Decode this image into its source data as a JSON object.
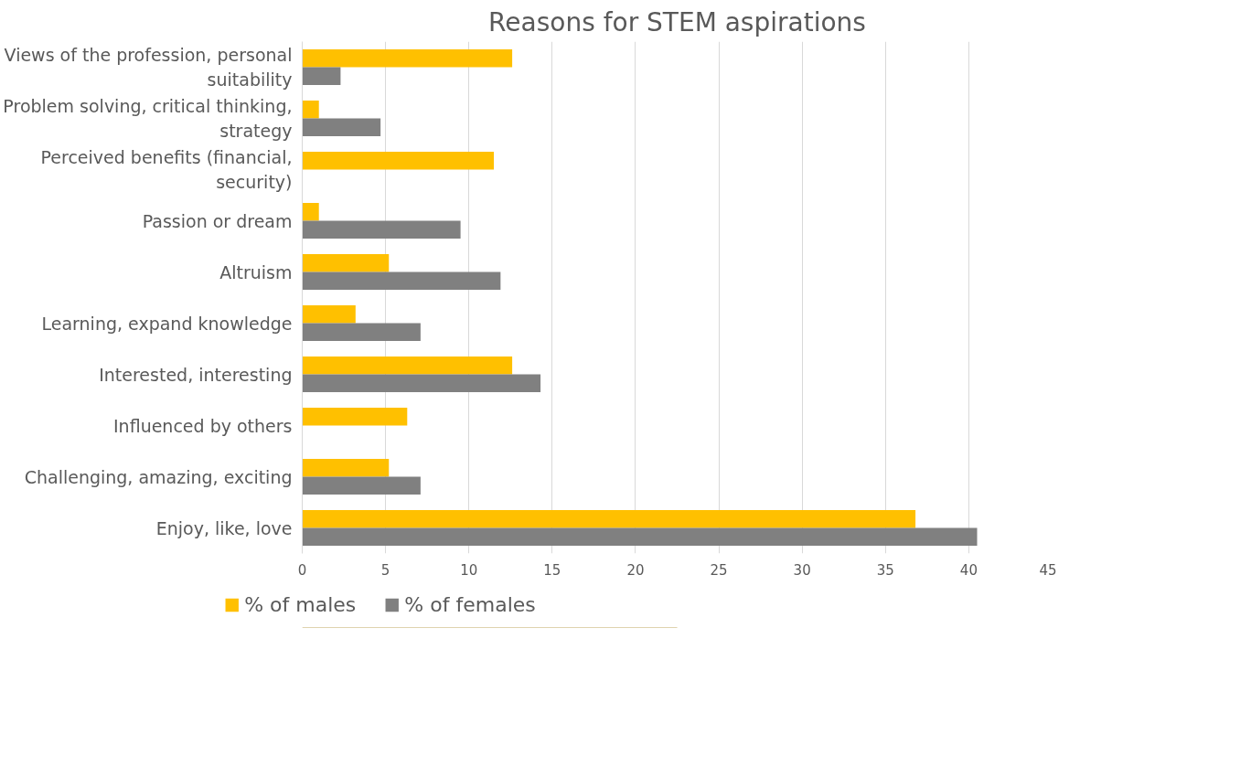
{
  "chart_data": {
    "type": "bar",
    "orientation": "horizontal",
    "title": "Reasons for STEM aspirations",
    "categories": [
      "Views of the profession, personal suitability",
      "Problem solving, critical thinking, strategy",
      "Perceived benefits (financial, security)",
      "Passion or dream",
      "Altruism",
      "Learning, expand knowledge",
      "Interested, interesting",
      "Influenced by others",
      "Challenging, amazing, exciting",
      "Enjoy, like, love"
    ],
    "series": [
      {
        "name": "% of males",
        "color": "#ffc000",
        "values": [
          12.6,
          1.0,
          11.5,
          1.0,
          5.2,
          3.2,
          12.6,
          6.3,
          5.2,
          36.8
        ]
      },
      {
        "name": "% of females",
        "color": "#808080",
        "values": [
          2.3,
          4.7,
          0,
          9.5,
          11.9,
          7.1,
          14.3,
          0,
          7.1,
          40.5
        ]
      }
    ],
    "xlim": [
      0,
      45
    ],
    "xticks": [
      0,
      5,
      10,
      15,
      20,
      25,
      30,
      35,
      40,
      45
    ],
    "grid": "x",
    "legend": "bottom"
  }
}
